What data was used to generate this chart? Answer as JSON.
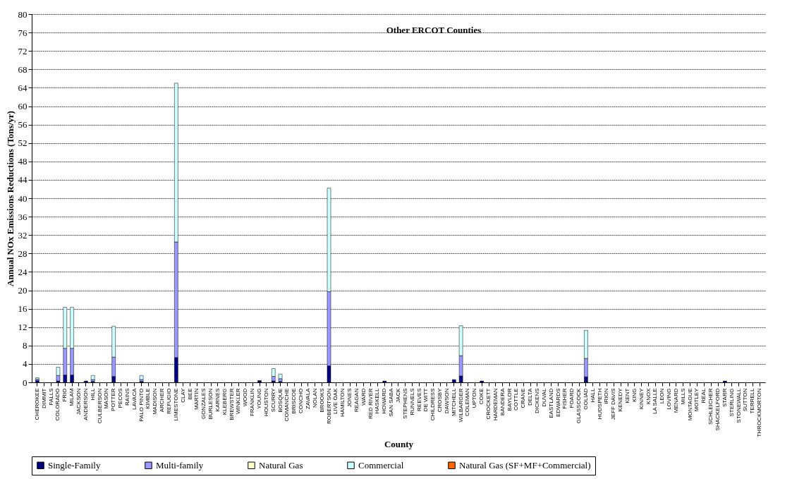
{
  "chart_data": {
    "type": "bar",
    "stacked": true,
    "title": "Other ERCOT Counties",
    "xlabel": "County",
    "ylabel": "Annual NOx Emissions Reductions (Tons/yr)",
    "categories": [
      "CHEROKEE",
      "DIMMIT",
      "FALLS",
      "COLORADO",
      "FRIO",
      "MILAM",
      "JACKSON",
      "ANDERSON",
      "HILL",
      "CULBERSON",
      "MASON",
      "POTTER",
      "PECOS",
      "RAINS",
      "LAVACA",
      "PALO PINTO",
      "KIMBLE",
      "MADISON",
      "ARCHER",
      "REFUGIO",
      "LIMESTONE",
      "CLAY",
      "BEE",
      "MARTIN",
      "GONZALES",
      "BURLESON",
      "KARNES",
      "KLEBERG",
      "BREWSTER",
      "WINKLER",
      "WOOD",
      "FRANKLIN",
      "YOUNG",
      "HOUSTON",
      "SCURRY",
      "BOSQUE",
      "COMANCHE",
      "BRISCOE",
      "CONCHO",
      "ZAVALA",
      "NOLAN",
      "BROOKS",
      "ROBERTSON",
      "LIVE OAK",
      "HAMILTON",
      "JONES",
      "REAGAN",
      "WARD",
      "RED RIVER",
      "HASKELL",
      "HOWARD",
      "SAN SABA",
      "JACK",
      "STEPHENS",
      "RUNNELS",
      "REEVES",
      "DE WITT",
      "CHILDRESS",
      "CROSBY",
      "DAWSON",
      "MITCHELL",
      "WILBARGER",
      "COLEMAN",
      "UPTON",
      "COKE",
      "CROCKETT",
      "HARDEMAN",
      "BANDERA",
      "BAYLOR",
      "COTTLE",
      "CRANE",
      "DELTA",
      "DICKENS",
      "DUVAL",
      "EASTLAND",
      "EDWARDS",
      "FISHER",
      "FOARD",
      "GLASSCOCK",
      "GOLIAD",
      "HALL",
      "HUDSPETH",
      "IRION",
      "JEFF DAVIS",
      "KENEDY",
      "KENT",
      "KING",
      "KINNEY",
      "KNOX",
      "LA SALLE",
      "LEON",
      "LOVING",
      "MENARD",
      "MILLS",
      "MONTAGUE",
      "MOTLEY",
      "REAL",
      "SCHLEICHER",
      "SHACKELFORD",
      "STARR",
      "STERLING",
      "STONEWALL",
      "SUTTON",
      "TERRELL",
      "THROCKMORTON"
    ],
    "series": [
      {
        "name": "Single-Family",
        "color": "#000080",
        "values": [
          0.4,
          0,
          0,
          0.3,
          1.6,
          1.6,
          0,
          0.3,
          0.2,
          0,
          0,
          1.3,
          0,
          0,
          0,
          0.2,
          0,
          0,
          0,
          0,
          5.4,
          0,
          0,
          0,
          0,
          0,
          0,
          0,
          0,
          0,
          0,
          0,
          0.4,
          0,
          0.3,
          0.2,
          0,
          0,
          0,
          0,
          0,
          0,
          3.6,
          0,
          0,
          0,
          0,
          0,
          0,
          0,
          0.3,
          0,
          0,
          0,
          0,
          0,
          0,
          0,
          0,
          0,
          0.6,
          1.4,
          0,
          0,
          0.3,
          0,
          0,
          0,
          0,
          0,
          0,
          0,
          0,
          0,
          0,
          0,
          0,
          0,
          0,
          1.2,
          0,
          0,
          0,
          0,
          0,
          0,
          0,
          0,
          0,
          0,
          0,
          0,
          0,
          0,
          0,
          0,
          0,
          0,
          0,
          0.3,
          0,
          0,
          0,
          0,
          0
        ]
      },
      {
        "name": "Multi-family",
        "color": "#9999ff",
        "values": [
          0.3,
          0,
          0,
          1.2,
          5.8,
          5.8,
          0,
          0,
          0.4,
          0,
          0,
          4.2,
          0,
          0,
          0,
          0.4,
          0,
          0,
          0,
          0,
          25.1,
          0,
          0,
          0,
          0,
          0,
          0,
          0,
          0,
          0,
          0,
          0,
          0,
          0,
          1.0,
          0.6,
          0,
          0,
          0,
          0,
          0,
          0,
          16.1,
          0,
          0,
          0,
          0,
          0,
          0,
          0,
          0,
          0,
          0,
          0,
          0,
          0,
          0,
          0,
          0,
          0,
          0,
          4.4,
          0,
          0,
          0,
          0,
          0,
          0,
          0,
          0,
          0,
          0,
          0,
          0,
          0,
          0,
          0,
          0,
          0,
          4.0,
          0,
          0,
          0,
          0,
          0,
          0,
          0,
          0,
          0,
          0,
          0,
          0,
          0,
          0,
          0,
          0,
          0,
          0,
          0,
          0,
          0,
          0,
          0,
          0,
          0
        ]
      },
      {
        "name": "Natural Gas",
        "color": "#ffffcc",
        "values": [
          0,
          0,
          0,
          0,
          0,
          0,
          0,
          0,
          0,
          0,
          0,
          0,
          0,
          0,
          0,
          0,
          0,
          0,
          0,
          0,
          0,
          0,
          0,
          0,
          0,
          0,
          0,
          0,
          0,
          0,
          0,
          0,
          0,
          0,
          0,
          0,
          0,
          0,
          0,
          0,
          0,
          0,
          0,
          0,
          0,
          0,
          0,
          0,
          0,
          0,
          0,
          0,
          0,
          0,
          0,
          0,
          0,
          0,
          0,
          0,
          0,
          0,
          0,
          0,
          0,
          0,
          0,
          0,
          0,
          0,
          0,
          0,
          0,
          0,
          0,
          0,
          0,
          0,
          0,
          0,
          0,
          0,
          0,
          0,
          0,
          0,
          0,
          0,
          0,
          0,
          0,
          0,
          0,
          0,
          0,
          0,
          0,
          0,
          0,
          0,
          0,
          0,
          0,
          0,
          0
        ]
      },
      {
        "name": "Commercial",
        "color": "#ccffff",
        "values": [
          0.3,
          0,
          0,
          1.8,
          8.9,
          8.9,
          0,
          0,
          0.9,
          0,
          0,
          6.7,
          0,
          0,
          0,
          0.9,
          0,
          0,
          0,
          0,
          34.5,
          0,
          0,
          0,
          0,
          0,
          0,
          0,
          0,
          0,
          0,
          0,
          0,
          0,
          1.7,
          1.0,
          0,
          0,
          0,
          0,
          0,
          0,
          22.5,
          0,
          0,
          0,
          0,
          0,
          0,
          0,
          0,
          0,
          0,
          0,
          0,
          0,
          0,
          0,
          0,
          0,
          0,
          6.5,
          0,
          0,
          0,
          0,
          0,
          0,
          0,
          0,
          0,
          0,
          0,
          0,
          0,
          0,
          0,
          0,
          0,
          6.1,
          0,
          0,
          0,
          0,
          0,
          0,
          0,
          0,
          0,
          0,
          0,
          0,
          0,
          0,
          0,
          0,
          0,
          0,
          0,
          0,
          0,
          0,
          0,
          0,
          0
        ]
      },
      {
        "name": "Natural Gas (SF+MF+Commercial)",
        "color": "#ff6600",
        "values": [
          0,
          0,
          0,
          0,
          0,
          0,
          0,
          0,
          0,
          0,
          0,
          0,
          0,
          0,
          0,
          0,
          0,
          0,
          0,
          0,
          0,
          0,
          0,
          0,
          0,
          0,
          0,
          0,
          0,
          0,
          0,
          0,
          0,
          0,
          0,
          0,
          0,
          0,
          0,
          0,
          0,
          0,
          0,
          0,
          0,
          0,
          0,
          0,
          0,
          0,
          0,
          0,
          0,
          0,
          0,
          0,
          0,
          0,
          0,
          0,
          0,
          0,
          0,
          0,
          0,
          0,
          0,
          0,
          0,
          0,
          0,
          0,
          0,
          0,
          0,
          0,
          0,
          0,
          0,
          0,
          0,
          0,
          0,
          0,
          0,
          0,
          0,
          0,
          0,
          0,
          0,
          0,
          0,
          0,
          0,
          0,
          0,
          0,
          0,
          0,
          0,
          0,
          0,
          0,
          0
        ]
      }
    ],
    "ylim": [
      0,
      80
    ],
    "yticks": [
      0,
      4,
      8,
      12,
      16,
      20,
      24,
      28,
      32,
      36,
      40,
      44,
      48,
      52,
      56,
      60,
      64,
      68,
      72,
      76,
      80
    ],
    "grid": "y",
    "legend": "bottom"
  }
}
